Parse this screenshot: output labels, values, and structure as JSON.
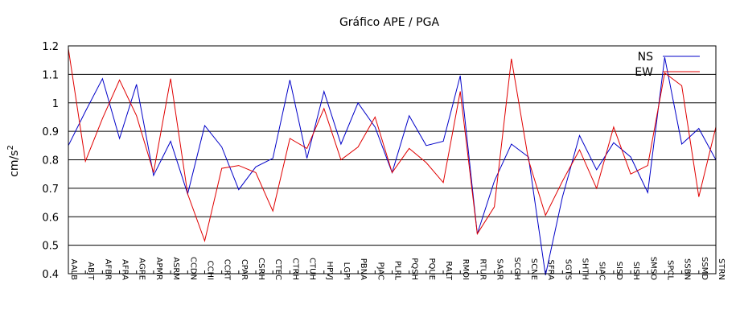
{
  "chart_data": {
    "type": "line",
    "title": "Gráfico  APE / PGA",
    "ylabel": "cm/s",
    "ylabel_sup": "2",
    "xlabel": "",
    "ylim": [
      0.4,
      1.2
    ],
    "yticks": [
      0.4,
      0.5,
      0.6,
      0.7,
      0.8,
      0.9,
      1,
      1.1,
      1.2
    ],
    "grid": "horizontal",
    "legend": "top-right",
    "categories": [
      "AALB",
      "ABJT",
      "AFBR",
      "AFRA",
      "AGRE",
      "APMR",
      "ASRM",
      "CCDN",
      "CCHI",
      "CCRT",
      "CPAR",
      "CSRH",
      "CTEC",
      "CTRH",
      "CTUH",
      "HPVJ",
      "LGPI",
      "PBNA",
      "PJAC",
      "PLRL",
      "PQSH",
      "PQUE",
      "RALT",
      "RMOI",
      "RTUR",
      "SASR",
      "SCGH",
      "SCNE",
      "SFRA",
      "SGTS",
      "SHTH",
      "SIAC",
      "SISD",
      "SISH",
      "SMSO",
      "SPCL",
      "SSBN",
      "SSMD",
      "STRN"
    ],
    "series": [
      {
        "name": "NS",
        "color": "#0000c8",
        "values": [
          0.85,
          0.97,
          1.085,
          0.875,
          1.065,
          0.745,
          0.865,
          0.68,
          0.92,
          0.845,
          0.695,
          0.775,
          0.805,
          1.08,
          0.805,
          1.04,
          0.855,
          1.0,
          0.915,
          0.755,
          0.955,
          0.85,
          0.865,
          1.095,
          0.54,
          0.725,
          0.855,
          0.81,
          0.395,
          0.67,
          0.885,
          0.765,
          0.86,
          0.81,
          0.685,
          1.16,
          0.855,
          0.91,
          0.8
        ]
      },
      {
        "name": "EW",
        "color": "#e00000",
        "values": [
          1.19,
          0.795,
          0.945,
          1.08,
          0.955,
          0.755,
          1.085,
          0.68,
          0.515,
          0.77,
          0.78,
          0.755,
          0.62,
          0.875,
          0.84,
          0.98,
          0.8,
          0.845,
          0.95,
          0.755,
          0.84,
          0.79,
          0.72,
          1.04,
          0.54,
          0.635,
          1.155,
          0.8,
          0.605,
          0.725,
          0.835,
          0.7,
          0.915,
          0.75,
          0.78,
          1.105,
          1.06,
          0.67,
          0.915
        ]
      }
    ]
  }
}
